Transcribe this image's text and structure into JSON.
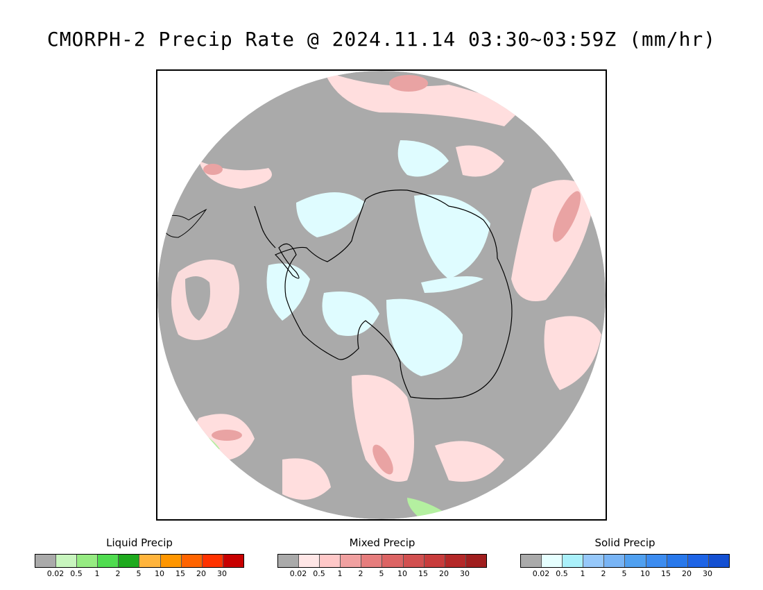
{
  "title": "CMORPH-2 Precip Rate @ 2024.11.14 03:30~03:59Z (mm/hr)",
  "map": {
    "projection": "south-polar-stereographic",
    "colors": {
      "no_precip": "#aaaaaa",
      "mixed_light": "#ffdede",
      "mixed_mid": "#f4a6a6",
      "mixed_heavy": "#e05a5a",
      "solid_light": "#dffcff",
      "liquid_light": "#b4f0a0",
      "coastline": "#000000"
    }
  },
  "legends": [
    {
      "title": "Liquid Precip",
      "colors": [
        "#aaaaaa",
        "#c8f5be",
        "#96eb82",
        "#50dc50",
        "#1eaa1e",
        "#ffb43c",
        "#ff9600",
        "#ff6400",
        "#ff3200",
        "#c80000"
      ],
      "ticks": [
        "0.02",
        "0.5",
        "1",
        "2",
        "5",
        "10",
        "15",
        "20",
        "30"
      ]
    },
    {
      "title": "Mixed Precip",
      "colors": [
        "#aaaaaa",
        "#ffe6e6",
        "#ffc8c8",
        "#f0a0a0",
        "#e67d7d",
        "#dc6464",
        "#d25050",
        "#c83c3c",
        "#b42828",
        "#a01e1e"
      ],
      "ticks": [
        "0.02",
        "0.5",
        "1",
        "2",
        "5",
        "10",
        "15",
        "20",
        "30"
      ]
    },
    {
      "title": "Solid Precip",
      "colors": [
        "#aaaaaa",
        "#e6ffff",
        "#aaf0fa",
        "#96c8fa",
        "#78b4f5",
        "#50a0f0",
        "#3c8cf0",
        "#2878eb",
        "#1e64e6",
        "#1450d2"
      ],
      "ticks": [
        "0.02",
        "0.5",
        "1",
        "2",
        "5",
        "10",
        "15",
        "20",
        "30"
      ]
    }
  ]
}
